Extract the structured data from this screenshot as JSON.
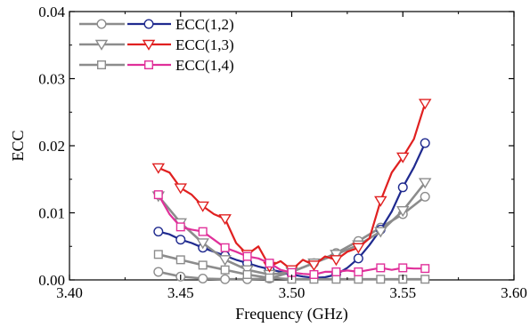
{
  "chart_data": {
    "type": "line",
    "xlabel": "Frequency (GHz)",
    "ylabel": "ECC",
    "xlim": [
      3.4,
      3.6
    ],
    "ylim": [
      0,
      0.04
    ],
    "xticks": [
      "3.40",
      "3.45",
      "3.50",
      "3.55",
      "3.60"
    ],
    "yticks": [
      "0.00",
      "0.01",
      "0.02",
      "0.03",
      "0.04"
    ],
    "grid": false,
    "legend_position": "top-left",
    "series": [
      {
        "name": "",
        "marker": "circle",
        "color": "#8c8c8c",
        "x": [
          3.44,
          3.45,
          3.46,
          3.47,
          3.48,
          3.49,
          3.5,
          3.51,
          3.52,
          3.53,
          3.54,
          3.55,
          3.56
        ],
        "y": [
          0.0012,
          0.0005,
          0.0002,
          0.0001,
          0.0001,
          0.0002,
          0.0012,
          0.0025,
          0.004,
          0.0058,
          0.0078,
          0.0098,
          0.0124
        ]
      },
      {
        "name": "ECC(1,2)",
        "marker": "circle",
        "color": "#1f2a8f",
        "x": [
          3.44,
          3.445,
          3.45,
          3.455,
          3.46,
          3.465,
          3.47,
          3.475,
          3.48,
          3.485,
          3.49,
          3.495,
          3.5,
          3.505,
          3.51,
          3.515,
          3.52,
          3.525,
          3.53,
          3.535,
          3.54,
          3.545,
          3.55,
          3.555,
          3.56
        ],
        "y": [
          0.0072,
          0.0068,
          0.006,
          0.0055,
          0.0048,
          0.0042,
          0.0036,
          0.003,
          0.0025,
          0.002,
          0.0016,
          0.0012,
          0.0008,
          0.0005,
          0.0003,
          0.0004,
          0.0008,
          0.0018,
          0.0032,
          0.0052,
          0.0075,
          0.0102,
          0.0138,
          0.0168,
          0.0204
        ]
      },
      {
        "name": "",
        "marker": "triangle-down",
        "color": "#8c8c8c",
        "x": [
          3.44,
          3.45,
          3.46,
          3.47,
          3.48,
          3.49,
          3.5,
          3.51,
          3.52,
          3.53,
          3.54,
          3.55,
          3.56
        ],
        "y": [
          0.0125,
          0.0085,
          0.0055,
          0.003,
          0.0015,
          0.0008,
          0.0012,
          0.0025,
          0.0038,
          0.0052,
          0.0072,
          0.0103,
          0.0145
        ]
      },
      {
        "name": "ECC(1,3)",
        "marker": "triangle-down",
        "color": "#e02020",
        "x": [
          3.44,
          3.445,
          3.45,
          3.455,
          3.46,
          3.465,
          3.47,
          3.475,
          3.48,
          3.485,
          3.49,
          3.495,
          3.5,
          3.505,
          3.51,
          3.515,
          3.52,
          3.525,
          3.53,
          3.535,
          3.54,
          3.545,
          3.55,
          3.555,
          3.56
        ],
        "y": [
          0.0167,
          0.016,
          0.0137,
          0.0127,
          0.011,
          0.0098,
          0.0091,
          0.0055,
          0.0038,
          0.005,
          0.002,
          0.0028,
          0.0015,
          0.003,
          0.0022,
          0.0035,
          0.003,
          0.0042,
          0.0048,
          0.0062,
          0.0118,
          0.016,
          0.0183,
          0.021,
          0.0263
        ]
      },
      {
        "name": "",
        "marker": "square",
        "color": "#8c8c8c",
        "x": [
          3.44,
          3.45,
          3.46,
          3.47,
          3.48,
          3.49,
          3.5,
          3.51,
          3.52,
          3.53,
          3.54,
          3.55,
          3.56
        ],
        "y": [
          0.0038,
          0.003,
          0.0022,
          0.0015,
          0.0008,
          0.0003,
          0.0001,
          0.0001,
          0.0001,
          0.0001,
          0.0001,
          0.0001,
          0.0001
        ]
      },
      {
        "name": "ECC(1,4)",
        "marker": "square",
        "color": "#e0309a",
        "x": [
          3.44,
          3.445,
          3.45,
          3.455,
          3.46,
          3.465,
          3.47,
          3.475,
          3.48,
          3.485,
          3.49,
          3.495,
          3.5,
          3.505,
          3.51,
          3.515,
          3.52,
          3.525,
          3.53,
          3.535,
          3.54,
          3.545,
          3.55,
          3.555,
          3.56
        ],
        "y": [
          0.0127,
          0.0098,
          0.0079,
          0.0075,
          0.0072,
          0.006,
          0.0048,
          0.0042,
          0.0035,
          0.0032,
          0.0025,
          0.0015,
          0.0011,
          0.0009,
          0.0008,
          0.0012,
          0.0012,
          0.0014,
          0.0012,
          0.0015,
          0.0018,
          0.0015,
          0.0018,
          0.0017,
          0.0017
        ]
      }
    ]
  }
}
